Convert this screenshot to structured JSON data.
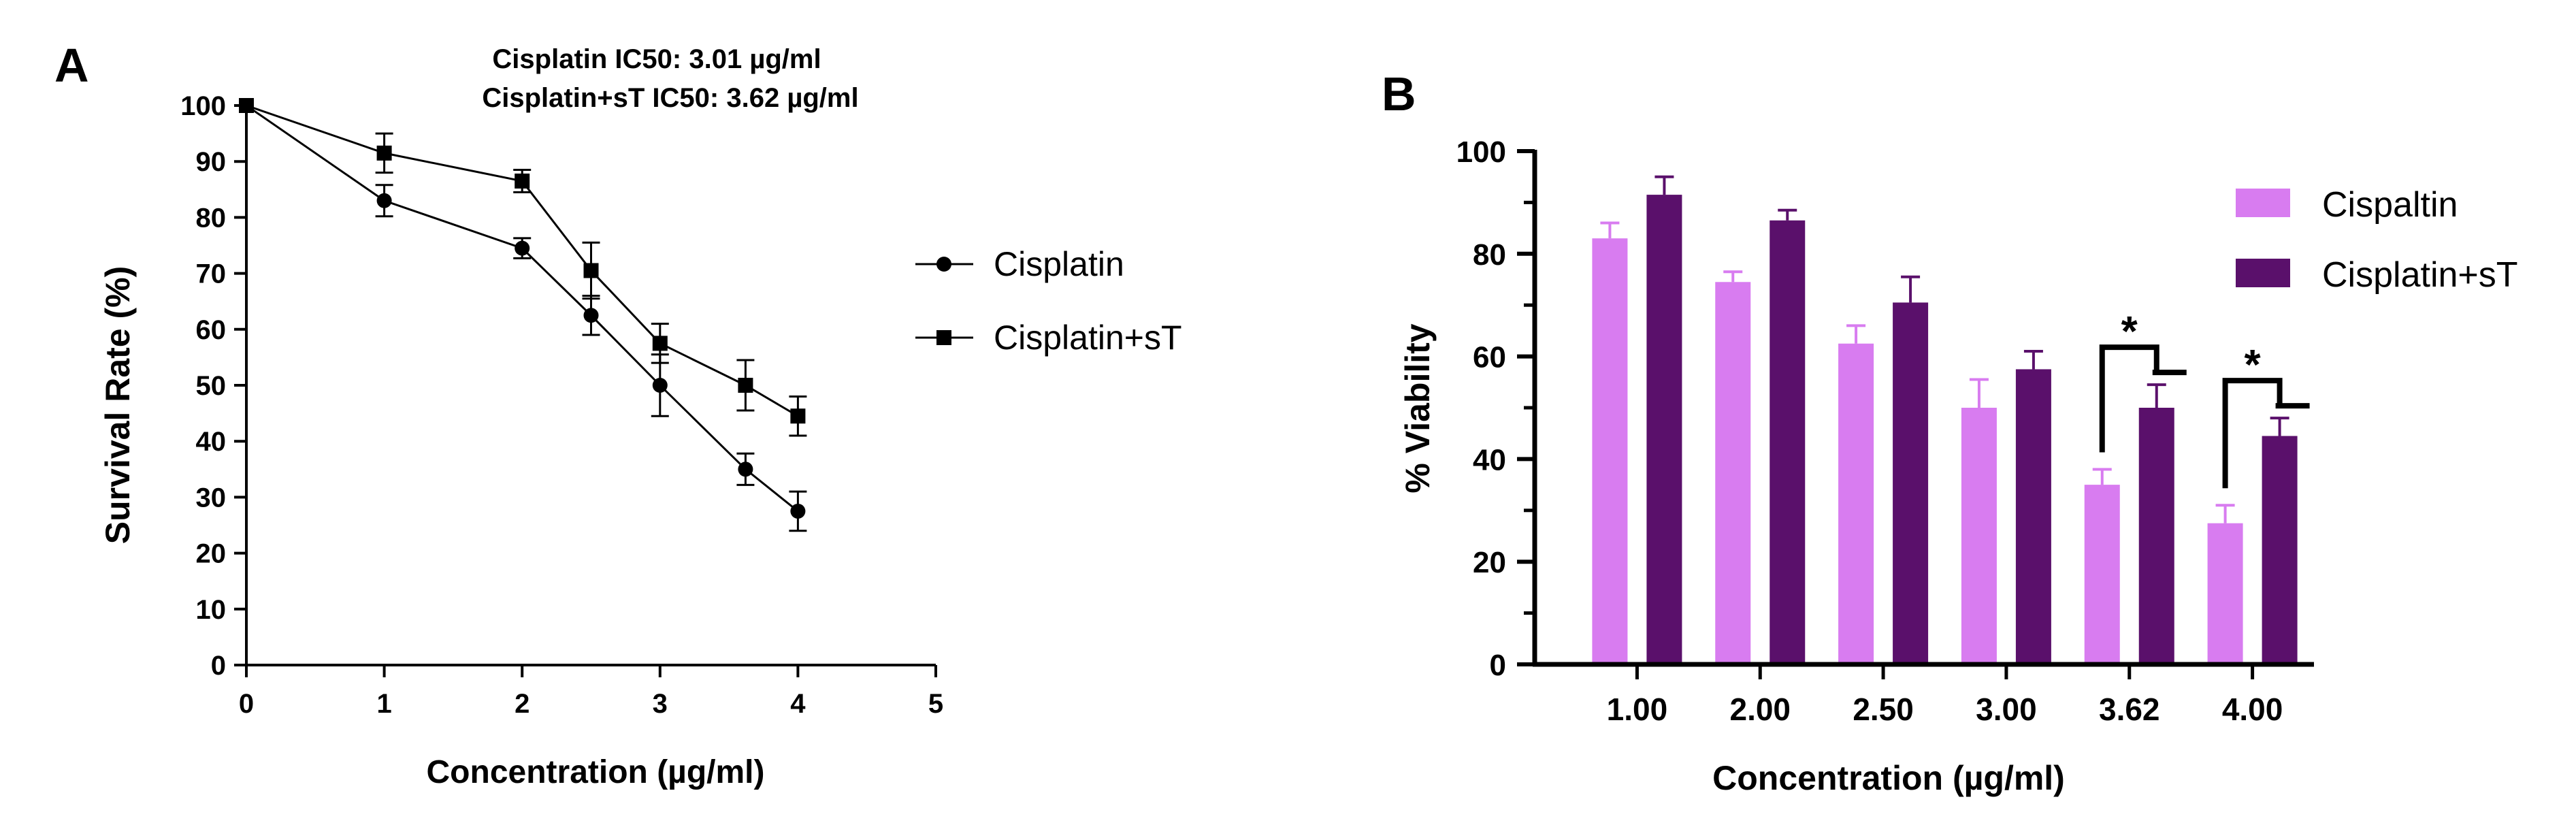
{
  "colors": {
    "axis": "#000000",
    "cispaltin_bar": "#d87cf0",
    "cisplatin_st_bar": "#5a106b",
    "star": "#1a1a3a"
  },
  "chart_data": [
    {
      "panel": "A",
      "type": "line",
      "annotations": [
        "Cisplatin IC50: 3.01 µg/ml",
        "Cisplatin+sT IC50: 3.62 µg/ml"
      ],
      "xlabel": "Concentration (µg/ml)",
      "ylabel": "Survival Rate  (%)",
      "xlim": [
        0,
        5
      ],
      "ylim": [
        0,
        100
      ],
      "x_ticks": [
        0,
        1,
        2,
        3,
        4,
        5
      ],
      "y_ticks": [
        0,
        10,
        20,
        30,
        40,
        50,
        60,
        70,
        80,
        90,
        100
      ],
      "legend_position": "right",
      "series": [
        {
          "name": "Cisplatin",
          "marker": "circle",
          "x": [
            0,
            1,
            2,
            2.5,
            3,
            3.62,
            4
          ],
          "y": [
            100,
            83,
            74.5,
            62.5,
            50,
            35,
            27.5
          ],
          "err": [
            0,
            2.8,
            1.8,
            3.5,
            5.5,
            2.8,
            3.5
          ]
        },
        {
          "name": "Cisplatin+sT",
          "marker": "square",
          "x": [
            0,
            1,
            2,
            2.5,
            3,
            3.62,
            4
          ],
          "y": [
            100,
            91.5,
            86.5,
            70.5,
            57.5,
            50,
            44.5
          ],
          "err": [
            0,
            3.5,
            2,
            5,
            3.5,
            4.5,
            3.5
          ]
        }
      ]
    },
    {
      "panel": "B",
      "type": "bar",
      "xlabel": "Concentration (µg/ml)",
      "ylabel": "% Viability",
      "ylim": [
        0,
        100
      ],
      "y_ticks": [
        0,
        20,
        40,
        60,
        80,
        100
      ],
      "categories": [
        "1.00",
        "2.00",
        "2.50",
        "3.00",
        "3.62",
        "4.00"
      ],
      "legend_position": "top-right",
      "series": [
        {
          "name": "Cispaltin",
          "values": [
            83,
            74.5,
            62.5,
            50,
            35,
            27.5
          ],
          "err": [
            3,
            2,
            3.5,
            5.5,
            3,
            3.5
          ]
        },
        {
          "name": "Cisplatin+sT",
          "values": [
            91.5,
            86.5,
            70.5,
            57.5,
            50,
            44.5
          ],
          "err": [
            3.5,
            2,
            5,
            3.5,
            4.5,
            3.5
          ]
        }
      ],
      "significance": [
        {
          "category": "3.62",
          "label": "*"
        },
        {
          "category": "4.00",
          "label": "*"
        }
      ]
    }
  ]
}
